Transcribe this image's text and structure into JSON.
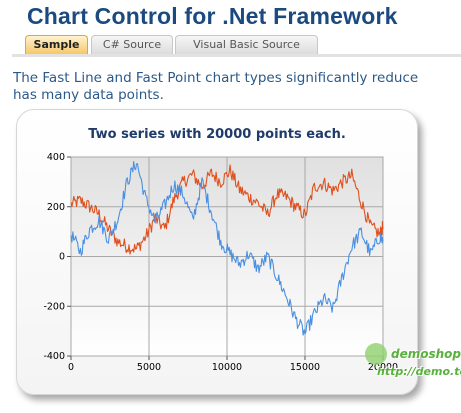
{
  "header": {
    "title": "Chart Control for .Net Framework"
  },
  "tabs": [
    {
      "label": "Sample",
      "active": true
    },
    {
      "label": "C# Source",
      "active": false
    },
    {
      "label": "Visual Basic Source",
      "active": false
    }
  ],
  "intro": {
    "line1": "The Fast Line and Fast Point chart types significantly reduce",
    "line2": "has many data points."
  },
  "watermark": {
    "name": "demoshop",
    "url": "http://demo.tc"
  },
  "colors": {
    "series_orange": "#e0501e",
    "series_blue": "#4a90e2",
    "title_blue": "#1b4a80"
  },
  "chart_data": {
    "type": "line",
    "title": "Two series with 20000 points each.",
    "xlim": [
      0,
      20000
    ],
    "ylim": [
      -400,
      400
    ],
    "xticks": [
      "0",
      "5000",
      "10000",
      "15000",
      "20000"
    ],
    "yticks": [
      "400",
      "200",
      "0",
      "-200",
      "-400"
    ],
    "grid": true,
    "series": [
      {
        "color": "#e0501e",
        "x": [
          0,
          600,
          1200,
          1800,
          2400,
          3000,
          3600,
          4200,
          4800,
          5400,
          6000,
          6600,
          7200,
          7800,
          8400,
          9000,
          9600,
          10200,
          10800,
          11400,
          12000,
          12600,
          13200,
          13800,
          14400,
          15000,
          15600,
          16200,
          16800,
          17400,
          18000,
          18600,
          19200,
          19800,
          20000
        ],
        "y": [
          210,
          225,
          200,
          170,
          110,
          60,
          40,
          30,
          80,
          155,
          110,
          230,
          300,
          330,
          280,
          335,
          300,
          345,
          270,
          240,
          215,
          170,
          250,
          240,
          200,
          165,
          280,
          295,
          265,
          300,
          325,
          220,
          120,
          90,
          120
        ]
      },
      {
        "color": "#4a90e2",
        "x": [
          0,
          600,
          1200,
          1800,
          2400,
          3000,
          3600,
          4200,
          4800,
          5400,
          6000,
          6600,
          7200,
          7800,
          8400,
          9000,
          9600,
          10200,
          10800,
          11400,
          12000,
          12600,
          13200,
          13800,
          14400,
          15000,
          15600,
          16200,
          16800,
          17400,
          18000,
          18600,
          19200,
          19800,
          20000
        ],
        "y": [
          90,
          20,
          110,
          145,
          70,
          150,
          300,
          380,
          230,
          140,
          205,
          290,
          250,
          145,
          300,
          180,
          60,
          10,
          -30,
          10,
          -50,
          0,
          -80,
          -160,
          -250,
          -310,
          -230,
          -170,
          -210,
          -80,
          40,
          100,
          10,
          80,
          60
        ]
      }
    ]
  }
}
